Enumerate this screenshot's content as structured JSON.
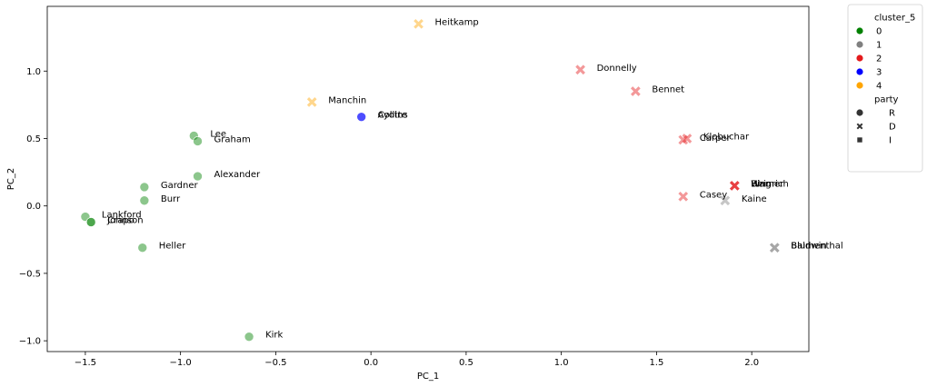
{
  "chart_data": {
    "type": "scatter",
    "xlabel": "PC_1",
    "ylabel": "PC_2",
    "xlim": [
      -1.7,
      2.3
    ],
    "ylim": [
      -1.08,
      1.48
    ],
    "xticks": [
      -1.5,
      -1.0,
      -0.5,
      0.0,
      0.5,
      1.0,
      1.5,
      2.0
    ],
    "xtick_labels": [
      "−1.5",
      "−1.0",
      "−0.5",
      "0.0",
      "0.5",
      "1.0",
      "1.5",
      "2.0"
    ],
    "yticks": [
      -1.0,
      -0.5,
      0.0,
      0.5,
      1.0
    ],
    "ytick_labels": [
      "−1.0",
      "−0.5",
      "0.0",
      "0.5",
      "1.0"
    ],
    "grid": false,
    "legend_position": "outside-right",
    "legend": {
      "hue_title": "cluster_5",
      "hue_entries": [
        {
          "label": "0",
          "color": "#008000"
        },
        {
          "label": "1",
          "color": "#808080"
        },
        {
          "label": "2",
          "color": "#e41a1c"
        },
        {
          "label": "3",
          "color": "#0000ff"
        },
        {
          "label": "4",
          "color": "#ffa500"
        }
      ],
      "style_title": "party",
      "style_entries": [
        {
          "label": "R",
          "marker": "circle"
        },
        {
          "label": "D",
          "marker": "x"
        },
        {
          "label": "I",
          "marker": "square"
        }
      ]
    },
    "points": [
      {
        "x": -1.5,
        "y": -0.08,
        "cluster": "0",
        "party": "R",
        "label": "Lankford"
      },
      {
        "x": -1.47,
        "y": -0.12,
        "cluster": "0",
        "party": "R",
        "label": "Crapo"
      },
      {
        "x": -1.47,
        "y": -0.12,
        "cluster": "0",
        "party": "R",
        "label": "Johnson"
      },
      {
        "x": -0.93,
        "y": 0.52,
        "cluster": "0",
        "party": "R",
        "label": "Lee"
      },
      {
        "x": -0.91,
        "y": 0.48,
        "cluster": "0",
        "party": "R",
        "label": "Graham"
      },
      {
        "x": -0.91,
        "y": 0.22,
        "cluster": "0",
        "party": "R",
        "label": "Alexander"
      },
      {
        "x": -1.19,
        "y": 0.14,
        "cluster": "0",
        "party": "R",
        "label": "Gardner"
      },
      {
        "x": -1.19,
        "y": 0.04,
        "cluster": "0",
        "party": "R",
        "label": "Burr"
      },
      {
        "x": -1.2,
        "y": -0.31,
        "cluster": "0",
        "party": "R",
        "label": "Heller"
      },
      {
        "x": -0.64,
        "y": -0.97,
        "cluster": "0",
        "party": "R",
        "label": "Kirk"
      },
      {
        "x": -0.05,
        "y": 0.66,
        "cluster": "3",
        "party": "R",
        "label": "Collins"
      },
      {
        "x": -0.05,
        "y": 0.66,
        "cluster": "3",
        "party": "R",
        "label": "Ayotte"
      },
      {
        "x": 0.25,
        "y": 1.35,
        "cluster": "4",
        "party": "D",
        "label": "Heitkamp"
      },
      {
        "x": -0.31,
        "y": 0.77,
        "cluster": "4",
        "party": "D",
        "label": "Manchin"
      },
      {
        "x": 1.1,
        "y": 1.01,
        "cluster": "2",
        "party": "D",
        "label": "Donnelly"
      },
      {
        "x": 1.39,
        "y": 0.85,
        "cluster": "2",
        "party": "D",
        "label": "Bennet"
      },
      {
        "x": 1.66,
        "y": 0.5,
        "cluster": "2",
        "party": "D",
        "label": "Klobuchar"
      },
      {
        "x": 1.64,
        "y": 0.49,
        "cluster": "2",
        "party": "D",
        "label": "Carper"
      },
      {
        "x": 1.64,
        "y": 0.07,
        "cluster": "2",
        "party": "D",
        "label": "Casey"
      },
      {
        "x": 1.91,
        "y": 0.15,
        "cluster": "2",
        "party": "D",
        "label": "Heinrich"
      },
      {
        "x": 1.91,
        "y": 0.15,
        "cluster": "2",
        "party": "D",
        "label": "Bing"
      },
      {
        "x": 1.91,
        "y": 0.15,
        "cluster": "2",
        "party": "D",
        "label": "Warner"
      },
      {
        "x": 1.86,
        "y": 0.04,
        "cluster": "1",
        "party": "D",
        "label": "Kaine"
      },
      {
        "x": 2.12,
        "y": -0.31,
        "cluster": "1",
        "party": "D",
        "label": "Blumenthal"
      },
      {
        "x": 2.12,
        "y": -0.31,
        "cluster": "1",
        "party": "D",
        "label": "Baldwin"
      }
    ]
  }
}
